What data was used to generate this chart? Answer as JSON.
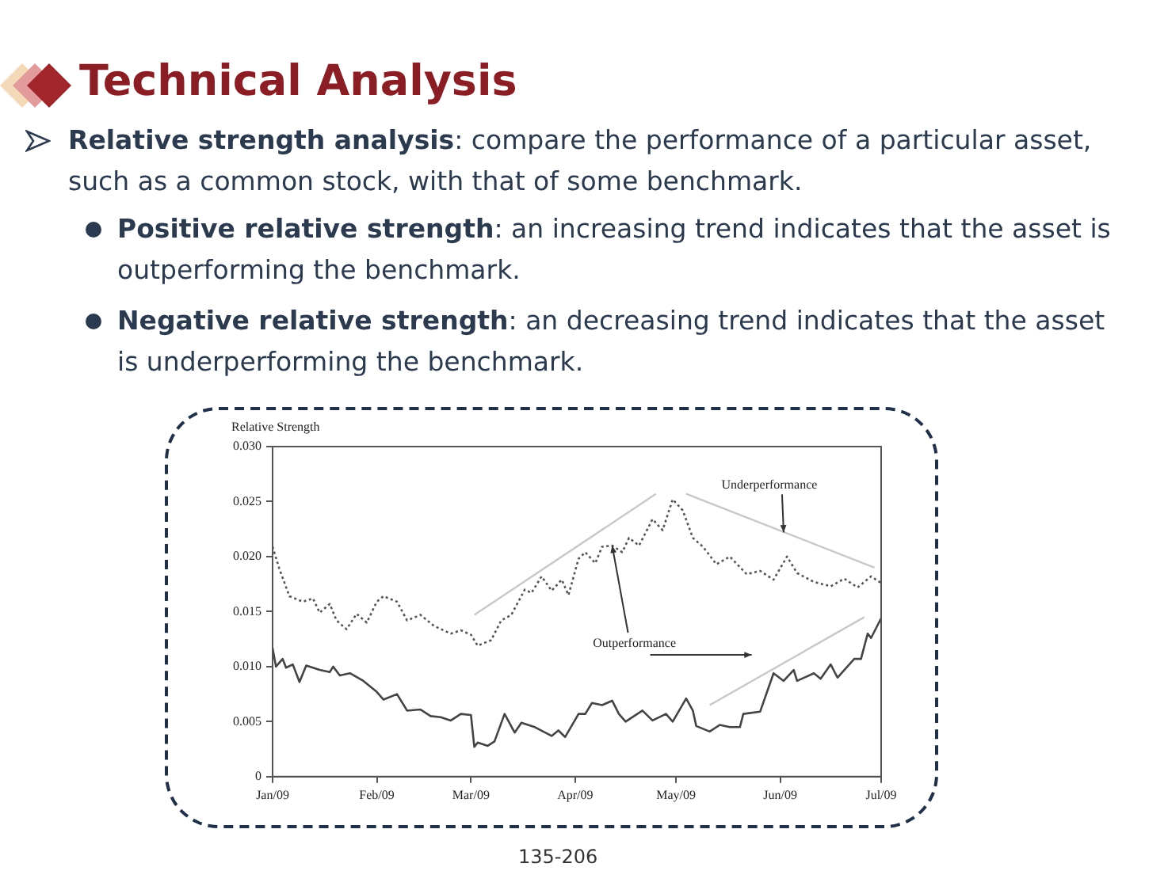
{
  "chart_data": {
    "type": "line",
    "title": "Technical Analysis",
    "ylabel": "Relative Strength",
    "annotations": [
      "Relative strength analysis: compare the performance of a particular asset, such as a common stock, with that of some benchmark.",
      "Positive relative strength: an increasing trend indicates that the asset is outperforming the benchmark.",
      "Negative relative strength: an decreasing trend indicates that the asset is underperforming the benchmark.",
      {
        "text": "Underperformance",
        "x": "2009-06-02",
        "y": 0.0222
      },
      {
        "text": "Outperformance",
        "x": "2009-04-12",
        "y": 0.021
      },
      "135-206"
    ],
    "series": [
      {
        "color": "#555555",
        "line_style": "dotted",
        "x": [
          "2009-01-01",
          "2009-01-03",
          "2009-01-06",
          "2009-01-10",
          "2009-01-13",
          "2009-01-15",
          "2009-01-18",
          "2009-01-20",
          "2009-01-23",
          "2009-01-26",
          "2009-01-29",
          "2009-02-01",
          "2009-02-03",
          "2009-02-07",
          "2009-02-10",
          "2009-02-14",
          "2009-02-18",
          "2009-02-23",
          "2009-02-26",
          "2009-03-01",
          "2009-03-03",
          "2009-03-07",
          "2009-03-10",
          "2009-03-13",
          "2009-03-17",
          "2009-03-19",
          "2009-03-22",
          "2009-03-25",
          "2009-03-28",
          "2009-03-30",
          "2009-04-02",
          "2009-04-04",
          "2009-04-07",
          "2009-04-09",
          "2009-04-12",
          "2009-04-15",
          "2009-04-17",
          "2009-04-20",
          "2009-04-24",
          "2009-04-27",
          "2009-04-30",
          "2009-05-03",
          "2009-05-06",
          "2009-05-09",
          "2009-05-13",
          "2009-05-17",
          "2009-05-22",
          "2009-05-26",
          "2009-05-30",
          "2009-06-03",
          "2009-06-06",
          "2009-06-11",
          "2009-06-16",
          "2009-06-20",
          "2009-06-24",
          "2009-06-28",
          "2009-07-01"
        ],
        "values": [
          0.0209,
          0.0189,
          0.0164,
          0.0159,
          0.0162,
          0.0149,
          0.0157,
          0.0142,
          0.0134,
          0.0148,
          0.014,
          0.0159,
          0.0164,
          0.0159,
          0.0142,
          0.0147,
          0.0137,
          0.013,
          0.0133,
          0.0129,
          0.0119,
          0.0124,
          0.0142,
          0.0147,
          0.017,
          0.0167,
          0.0182,
          0.0169,
          0.0179,
          0.0165,
          0.0198,
          0.0204,
          0.0194,
          0.0209,
          0.021,
          0.0204,
          0.0217,
          0.021,
          0.0234,
          0.0224,
          0.0252,
          0.0242,
          0.0217,
          0.0209,
          0.0193,
          0.02,
          0.0184,
          0.0187,
          0.0179,
          0.02,
          0.0185,
          0.0177,
          0.0173,
          0.018,
          0.0172,
          0.0182,
          0.0176
        ]
      },
      {
        "color": "#444444",
        "line_style": "solid",
        "x": [
          "2009-01-01",
          "2009-01-02",
          "2009-01-04",
          "2009-01-05",
          "2009-01-07",
          "2009-01-09",
          "2009-01-11",
          "2009-01-15",
          "2009-01-18",
          "2009-01-19",
          "2009-01-21",
          "2009-01-24",
          "2009-01-28",
          "2009-02-01",
          "2009-02-03",
          "2009-02-07",
          "2009-02-10",
          "2009-02-14",
          "2009-02-17",
          "2009-02-20",
          "2009-02-23",
          "2009-02-26",
          "2009-03-01",
          "2009-03-02",
          "2009-03-03",
          "2009-03-06",
          "2009-03-08",
          "2009-03-11",
          "2009-03-14",
          "2009-03-16",
          "2009-03-20",
          "2009-03-25",
          "2009-03-27",
          "2009-03-29",
          "2009-04-02",
          "2009-04-04",
          "2009-04-06",
          "2009-04-09",
          "2009-04-12",
          "2009-04-14",
          "2009-04-16",
          "2009-04-21",
          "2009-04-24",
          "2009-04-28",
          "2009-04-30",
          "2009-05-04",
          "2009-05-06",
          "2009-05-07",
          "2009-05-11",
          "2009-05-14",
          "2009-05-17",
          "2009-05-20",
          "2009-05-21",
          "2009-05-26",
          "2009-05-30",
          "2009-06-02",
          "2009-06-05",
          "2009-06-06",
          "2009-06-11",
          "2009-06-13",
          "2009-06-16",
          "2009-06-18",
          "2009-06-23",
          "2009-06-25",
          "2009-06-27",
          "2009-06-28",
          "2009-07-01"
        ],
        "values": [
          0.0117,
          0.01,
          0.0107,
          0.0099,
          0.0102,
          0.0086,
          0.0101,
          0.0097,
          0.0095,
          0.01,
          0.0092,
          0.0094,
          0.0087,
          0.0077,
          0.007,
          0.0075,
          0.006,
          0.0061,
          0.0055,
          0.0054,
          0.0051,
          0.0057,
          0.0056,
          0.0027,
          0.0031,
          0.0028,
          0.0032,
          0.0057,
          0.004,
          0.0049,
          0.0045,
          0.0037,
          0.0042,
          0.0036,
          0.0057,
          0.0057,
          0.0067,
          0.0065,
          0.0069,
          0.0057,
          0.005,
          0.006,
          0.0051,
          0.0057,
          0.005,
          0.0071,
          0.006,
          0.0046,
          0.0041,
          0.0047,
          0.0045,
          0.0045,
          0.0057,
          0.0059,
          0.0094,
          0.0087,
          0.0097,
          0.0087,
          0.0094,
          0.0089,
          0.0102,
          0.009,
          0.0107,
          0.0107,
          0.013,
          0.0126,
          0.0144
        ]
      },
      {
        "type": "line",
        "color": "#c8c8c8",
        "x": [
          "2009-03-02",
          "2009-04-25"
        ],
        "values": [
          0.0147,
          0.0257
        ]
      },
      {
        "type": "line",
        "color": "#c8c8c8",
        "x": [
          "2009-05-04",
          "2009-06-29"
        ],
        "values": [
          0.0257,
          0.019
        ]
      },
      {
        "type": "line",
        "color": "#c8c8c8",
        "x": [
          "2009-05-11",
          "2009-06-26"
        ],
        "values": [
          0.0065,
          0.0145
        ]
      }
    ],
    "xlim": [
      "2009-01-01",
      "2009-07-01"
    ],
    "xticks": [
      {
        "value": "2009-01-01",
        "label": "Jan/09"
      },
      {
        "value": "2009-02-01",
        "label": "Feb/09"
      },
      {
        "value": "2009-03-01",
        "label": "Mar/09"
      },
      {
        "value": "2009-04-01",
        "label": "Apr/09"
      },
      {
        "value": "2009-05-01",
        "label": "May/09"
      },
      {
        "value": "2009-06-01",
        "label": "Jun/09"
      },
      {
        "value": "2009-07-01",
        "label": "Jul/09"
      }
    ],
    "ylim": [
      0,
      0.03
    ],
    "yticks": [
      0,
      0.005,
      {
        "value": 0.01,
        "label": "0.010"
      },
      0.015,
      {
        "value": 0.02,
        "label": "0.020"
      },
      0.025,
      {
        "value": 0.03,
        "label": "0.030"
      }
    ],
    "grid": false,
    "marker": "none"
  }
}
